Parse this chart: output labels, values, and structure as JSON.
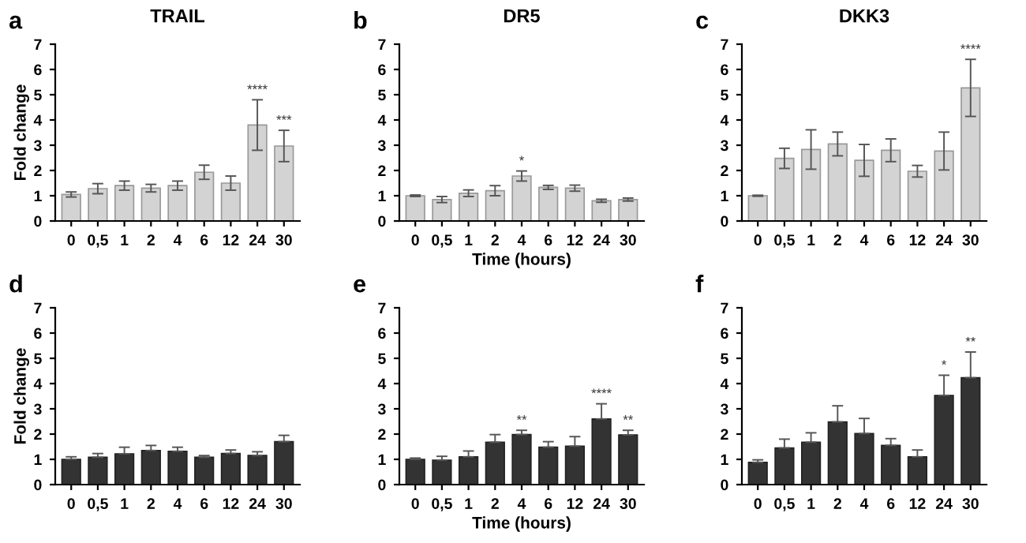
{
  "chart_data": [
    {
      "type": "bar",
      "title": "TRAIL",
      "ylabel": "Fold change",
      "categories": [
        "0",
        "0,5",
        "1",
        "2",
        "4",
        "6",
        "12",
        "24",
        "30"
      ],
      "ylim": [
        0,
        7
      ],
      "yticks": [
        0,
        1,
        2,
        3,
        4,
        5,
        6,
        7
      ],
      "color": "#d3d3d3",
      "values": [
        1.05,
        1.28,
        1.4,
        1.3,
        1.4,
        1.93,
        1.5,
        3.8,
        2.97
      ],
      "errors": [
        0.1,
        0.2,
        0.18,
        0.15,
        0.18,
        0.28,
        0.28,
        1.0,
        0.62
      ],
      "annotations": [
        "a",
        {
          "text": "****",
          "x": "24",
          "y": 4.8
        },
        {
          "text": "***",
          "x": "30",
          "y": 3.59
        }
      ]
    },
    {
      "type": "bar",
      "title": "DR5",
      "xlabel": "Time (hours)",
      "categories": [
        "0",
        "0,5",
        "1",
        "2",
        "4",
        "6",
        "12",
        "24",
        "30"
      ],
      "ylim": [
        0,
        7
      ],
      "yticks": [
        0,
        1,
        2,
        3,
        4,
        5,
        6,
        7
      ],
      "color": "#d3d3d3",
      "values": [
        1.0,
        0.85,
        1.1,
        1.2,
        1.78,
        1.33,
        1.3,
        0.8,
        0.85
      ],
      "errors": [
        0.03,
        0.12,
        0.13,
        0.2,
        0.2,
        0.08,
        0.12,
        0.06,
        0.06
      ],
      "annotations": [
        "b",
        {
          "text": "*",
          "x": "4",
          "y": 1.98
        }
      ]
    },
    {
      "type": "bar",
      "title": "DKK3",
      "categories": [
        "0",
        "0,5",
        "1",
        "2",
        "4",
        "6",
        "12",
        "24",
        "30"
      ],
      "ylim": [
        0,
        7
      ],
      "yticks": [
        0,
        1,
        2,
        3,
        4,
        5,
        6,
        7
      ],
      "color": "#d3d3d3",
      "values": [
        1.0,
        2.48,
        2.83,
        3.05,
        2.4,
        2.8,
        1.97,
        2.77,
        5.27
      ],
      "errors": [
        0.02,
        0.4,
        0.78,
        0.47,
        0.63,
        0.45,
        0.23,
        0.75,
        1.13
      ],
      "annotations": [
        "c",
        {
          "text": "****",
          "x": "30",
          "y": 6.4
        }
      ]
    },
    {
      "type": "bar",
      "ylabel": "Fold change",
      "categories": [
        "0",
        "0,5",
        "1",
        "2",
        "4",
        "6",
        "12",
        "24",
        "30"
      ],
      "ylim": [
        0,
        7
      ],
      "yticks": [
        0,
        1,
        2,
        3,
        4,
        5,
        6,
        7
      ],
      "color": "#333333",
      "values": [
        1.0,
        1.08,
        1.22,
        1.35,
        1.32,
        1.08,
        1.23,
        1.15,
        1.7
      ],
      "errors": [
        [
          1.0,
          1.1
        ],
        [
          1.08,
          1.23
        ],
        [
          1.22,
          1.48
        ],
        [
          1.35,
          1.55
        ],
        [
          1.32,
          1.48
        ],
        [
          1.08,
          1.15
        ],
        [
          1.23,
          1.37
        ],
        [
          1.15,
          1.3
        ],
        [
          1.7,
          1.95
        ]
      ],
      "annotations": [
        "d"
      ]
    },
    {
      "type": "bar",
      "xlabel": "Time (hours)",
      "categories": [
        "0",
        "0,5",
        "1",
        "2",
        "4",
        "6",
        "12",
        "24",
        "30"
      ],
      "ylim": [
        0,
        7
      ],
      "yticks": [
        0,
        1,
        2,
        3,
        4,
        5,
        6,
        7
      ],
      "color": "#333333",
      "values": [
        1.0,
        0.97,
        1.1,
        1.68,
        1.98,
        1.48,
        1.52,
        2.6,
        1.97
      ],
      "errors": [
        [
          1.0,
          1.05
        ],
        [
          0.97,
          1.12
        ],
        [
          1.1,
          1.33
        ],
        [
          1.68,
          1.98
        ],
        [
          1.98,
          2.15
        ],
        [
          1.48,
          1.7
        ],
        [
          1.52,
          1.9
        ],
        [
          2.6,
          3.2
        ],
        [
          1.97,
          2.15
        ]
      ],
      "annotations": [
        "e",
        {
          "text": "**",
          "x": "4",
          "y": 2.15
        },
        {
          "text": "****",
          "x": "24",
          "y": 3.2
        },
        {
          "text": "**",
          "x": "30",
          "y": 2.15
        }
      ]
    },
    {
      "type": "bar",
      "categories": [
        "0",
        "0,5",
        "1",
        "2",
        "4",
        "6",
        "12",
        "24",
        "30"
      ],
      "ylim": [
        0,
        7
      ],
      "yticks": [
        0,
        1,
        2,
        3,
        4,
        5,
        6,
        7
      ],
      "color": "#333333",
      "values": [
        0.88,
        1.45,
        1.68,
        2.48,
        2.02,
        1.55,
        1.1,
        3.53,
        4.23
      ],
      "errors": [
        [
          0.88,
          0.98
        ],
        [
          1.45,
          1.8
        ],
        [
          1.68,
          2.05
        ],
        [
          2.48,
          3.12
        ],
        [
          2.02,
          2.62
        ],
        [
          1.55,
          1.82
        ],
        [
          1.1,
          1.37
        ],
        [
          3.53,
          4.33
        ],
        [
          4.23,
          5.25
        ]
      ],
      "annotations": [
        "f",
        {
          "text": "*",
          "x": "24",
          "y": 4.33
        },
        {
          "text": "**",
          "x": "30",
          "y": 5.25
        }
      ]
    }
  ]
}
